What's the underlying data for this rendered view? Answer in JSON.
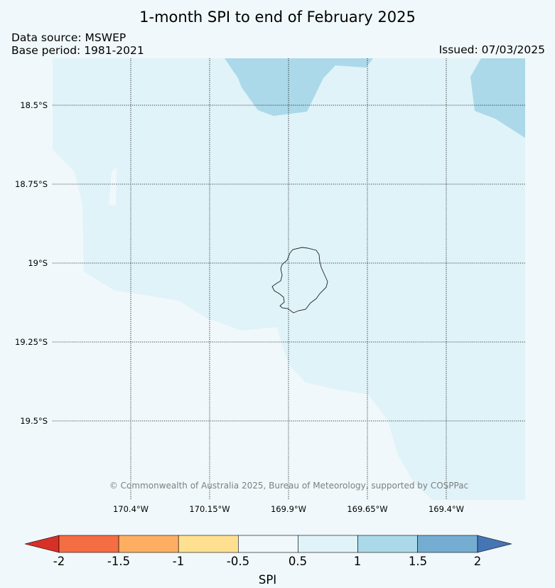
{
  "title": "1-month SPI to end of February 2025",
  "data_source": "Data source: MSWEP",
  "base_period": "Base period: 1981-2021",
  "issued": "Issued: 07/03/2025",
  "credit": "© Commonwealth of Australia 2025, Bureau of Meteorology, supported by COSPPac",
  "latitude_labels": [
    "18.5°S",
    "18.75°S",
    "19°S",
    "19.25°S",
    "19.5°S"
  ],
  "longitude_labels": [
    "170.4°W",
    "170.15°W",
    "169.9°W",
    "169.65°W",
    "169.4°W"
  ],
  "colorbar": {
    "label": "SPI",
    "ticks": [
      "-2",
      "-1.5",
      "-1",
      "-0.5",
      "0.5",
      "1",
      "1.5",
      "2"
    ],
    "colors": {
      "below_-2": "#d73027",
      "-2_to_-1.5": "#f46d43",
      "-1.5_to_-1": "#fdae61",
      "-1_to_-0.5": "#fee090",
      "-0.5_to_0.5": "#f0f8fb",
      "0.5_to_1": "#e0f3f8",
      "1_to_1.5": "#abd9e9",
      "1.5_to_2": "#74add1",
      "above_2": "#4575b4"
    }
  },
  "map": {
    "background_category": "-0.5 to 0.5",
    "grid": true,
    "feature": "Niue island outline"
  }
}
